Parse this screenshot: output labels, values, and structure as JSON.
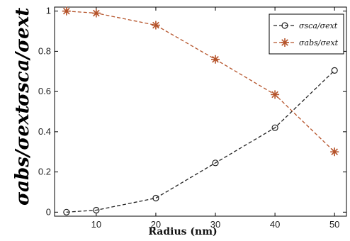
{
  "chart_data": {
    "type": "line",
    "x": [
      5,
      10,
      20,
      30,
      40,
      50
    ],
    "series": [
      {
        "name": "σsca/σext",
        "values": [
          0.0,
          0.01,
          0.07,
          0.245,
          0.42,
          0.705
        ],
        "color": "#222222",
        "marker": "circle",
        "dash": "dashed"
      },
      {
        "name": "σabs/σext",
        "values": [
          1.0,
          0.99,
          0.93,
          0.76,
          0.585,
          0.3
        ],
        "color": "#b5532a",
        "marker": "asterisk",
        "dash": "dashed"
      }
    ],
    "xlabel": "Radius (nm)",
    "ylabel_bottom": "σabs/σext",
    "ylabel_top": "σsca/σext",
    "xlim": [
      3,
      52
    ],
    "ylim": [
      -0.02,
      1.02
    ],
    "xticks": [
      10,
      20,
      30,
      40,
      50
    ],
    "yticks": [
      0,
      0.2,
      0.4,
      0.6,
      0.8,
      1
    ],
    "ytick_labels": [
      "0",
      "0.2",
      "0.4",
      "0.6",
      "0.8",
      "1"
    ],
    "grid": false,
    "legend": "top-right"
  }
}
